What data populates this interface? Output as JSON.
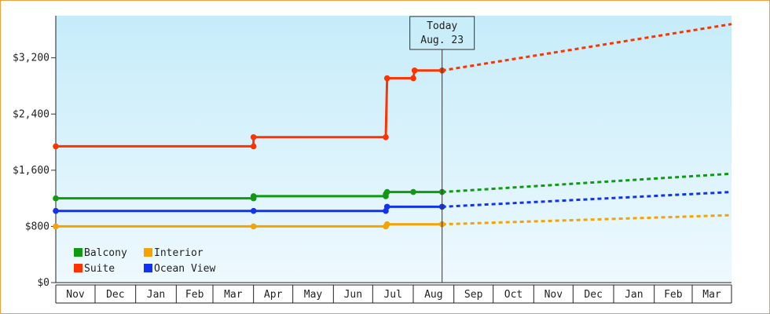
{
  "chart_data": {
    "type": "line",
    "x_unit": "month",
    "months": [
      "Nov",
      "Dec",
      "Jan",
      "Feb",
      "Mar",
      "Apr",
      "May",
      "Jun",
      "Jul",
      "Aug",
      "Sep",
      "Oct",
      "Nov",
      "Dec",
      "Jan",
      "Feb",
      "Mar"
    ],
    "x_range": [
      "2022-11-01",
      "2024-03-31"
    ],
    "ylim": [
      0,
      3800
    ],
    "yticks": [
      {
        "value": 0,
        "label": "$0"
      },
      {
        "value": 800,
        "label": "$800"
      },
      {
        "value": 1600,
        "label": "$1,600"
      },
      {
        "value": 2400,
        "label": "$2,400"
      },
      {
        "value": 3200,
        "label": "$3,200"
      }
    ],
    "today": {
      "date": "2023-08-23",
      "line1": "Today",
      "line2": "Aug. 23"
    },
    "legend_position": "bottom-left",
    "series": [
      {
        "name": "Balcony",
        "color": "#119911",
        "points": [
          {
            "date": "2022-11-01",
            "value": 1200
          },
          {
            "date": "2023-04-01",
            "value": 1200
          },
          {
            "date": "2023-04-01",
            "value": 1230
          },
          {
            "date": "2023-07-11",
            "value": 1230
          },
          {
            "date": "2023-07-11",
            "value": 1260
          },
          {
            "date": "2023-07-12",
            "value": 1290
          },
          {
            "date": "2023-08-01",
            "value": 1290
          },
          {
            "date": "2023-08-23",
            "value": 1290
          }
        ],
        "forecast": [
          {
            "date": "2023-08-23",
            "value": 1290
          },
          {
            "date": "2024-03-31",
            "value": 1550
          }
        ]
      },
      {
        "name": "Interior",
        "color": "#f5a300",
        "points": [
          {
            "date": "2022-11-01",
            "value": 800
          },
          {
            "date": "2023-04-01",
            "value": 800
          },
          {
            "date": "2023-07-11",
            "value": 800
          },
          {
            "date": "2023-07-12",
            "value": 830
          },
          {
            "date": "2023-08-23",
            "value": 830
          }
        ],
        "forecast": [
          {
            "date": "2023-08-23",
            "value": 830
          },
          {
            "date": "2024-03-31",
            "value": 960
          }
        ]
      },
      {
        "name": "Suite",
        "color": "#ff3300",
        "points": [
          {
            "date": "2022-11-01",
            "value": 1940
          },
          {
            "date": "2023-04-01",
            "value": 1940
          },
          {
            "date": "2023-04-01",
            "value": 2070
          },
          {
            "date": "2023-07-11",
            "value": 2070
          },
          {
            "date": "2023-07-12",
            "value": 2910
          },
          {
            "date": "2023-08-01",
            "value": 2910
          },
          {
            "date": "2023-08-02",
            "value": 3020
          },
          {
            "date": "2023-08-23",
            "value": 3020
          }
        ],
        "forecast": [
          {
            "date": "2023-08-23",
            "value": 3020
          },
          {
            "date": "2024-03-31",
            "value": 3680
          }
        ]
      },
      {
        "name": "Ocean View",
        "color": "#1133ee",
        "points": [
          {
            "date": "2022-11-01",
            "value": 1020
          },
          {
            "date": "2023-04-01",
            "value": 1020
          },
          {
            "date": "2023-07-11",
            "value": 1020
          },
          {
            "date": "2023-07-12",
            "value": 1080
          },
          {
            "date": "2023-08-23",
            "value": 1080
          }
        ],
        "forecast": [
          {
            "date": "2023-08-23",
            "value": 1080
          },
          {
            "date": "2024-03-31",
            "value": 1290
          }
        ]
      }
    ]
  }
}
